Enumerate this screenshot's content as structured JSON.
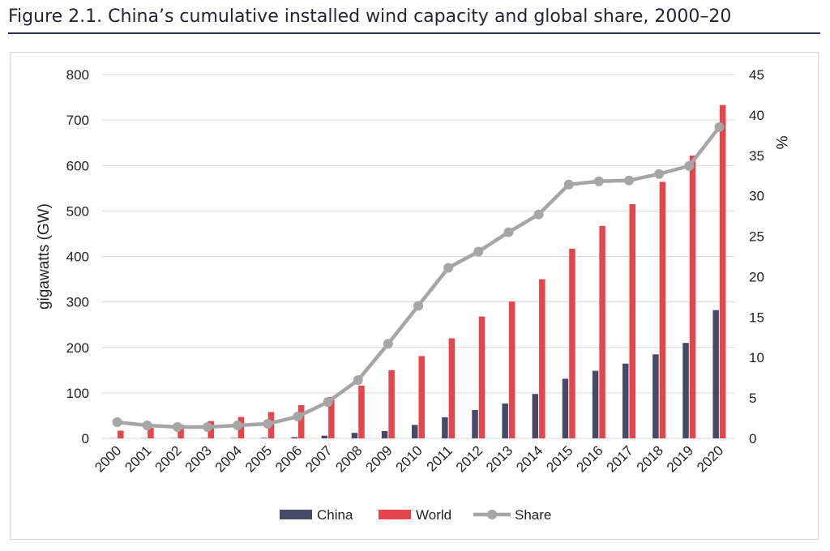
{
  "figure": {
    "title": "Figure 2.1. China’s cumulative installed wind capacity and global share, 2000–20"
  },
  "chart_data": {
    "type": "bar",
    "categories": [
      "2000",
      "2001",
      "2002",
      "2003",
      "2004",
      "2005",
      "2006",
      "2007",
      "2008",
      "2009",
      "2010",
      "2011",
      "2012",
      "2013",
      "2014",
      "2015",
      "2016",
      "2017",
      "2018",
      "2019",
      "2020"
    ],
    "series": [
      {
        "name": "China",
        "type": "bar",
        "axis": "left",
        "color": "#474a66",
        "values": [
          0.3,
          0.4,
          0.5,
          0.6,
          0.8,
          1.3,
          2.6,
          5.9,
          12.1,
          16.0,
          29.6,
          46.4,
          62.4,
          76.7,
          97.6,
          131.1,
          148.6,
          164.4,
          184.7,
          209.9,
          282.0
        ]
      },
      {
        "name": "World",
        "type": "bar",
        "axis": "left",
        "color": "#e4464c",
        "values": [
          17,
          23,
          30,
          38,
          47,
          58,
          73,
          91,
          116,
          150,
          181,
          220,
          268,
          301,
          350,
          417,
          467,
          515,
          564,
          622,
          733
        ]
      },
      {
        "name": "Share",
        "type": "line",
        "axis": "right",
        "color": "#a6a6a6",
        "values": [
          2.0,
          1.6,
          1.4,
          1.4,
          1.6,
          1.8,
          2.7,
          4.5,
          7.2,
          11.7,
          16.4,
          21.1,
          23.1,
          25.5,
          27.7,
          31.4,
          31.8,
          31.9,
          32.7,
          33.7,
          38.5
        ]
      }
    ],
    "ylabel": "gigawatts (GW)",
    "ylim": [
      0,
      800
    ],
    "yticks": [
      0,
      100,
      200,
      300,
      400,
      500,
      600,
      700,
      800
    ],
    "y2label": "%",
    "y2lim": [
      0,
      45
    ],
    "y2ticks": [
      0,
      5,
      10,
      15,
      20,
      25,
      30,
      35,
      40,
      45
    ],
    "grid": "horizontal",
    "legend_position": "bottom"
  }
}
